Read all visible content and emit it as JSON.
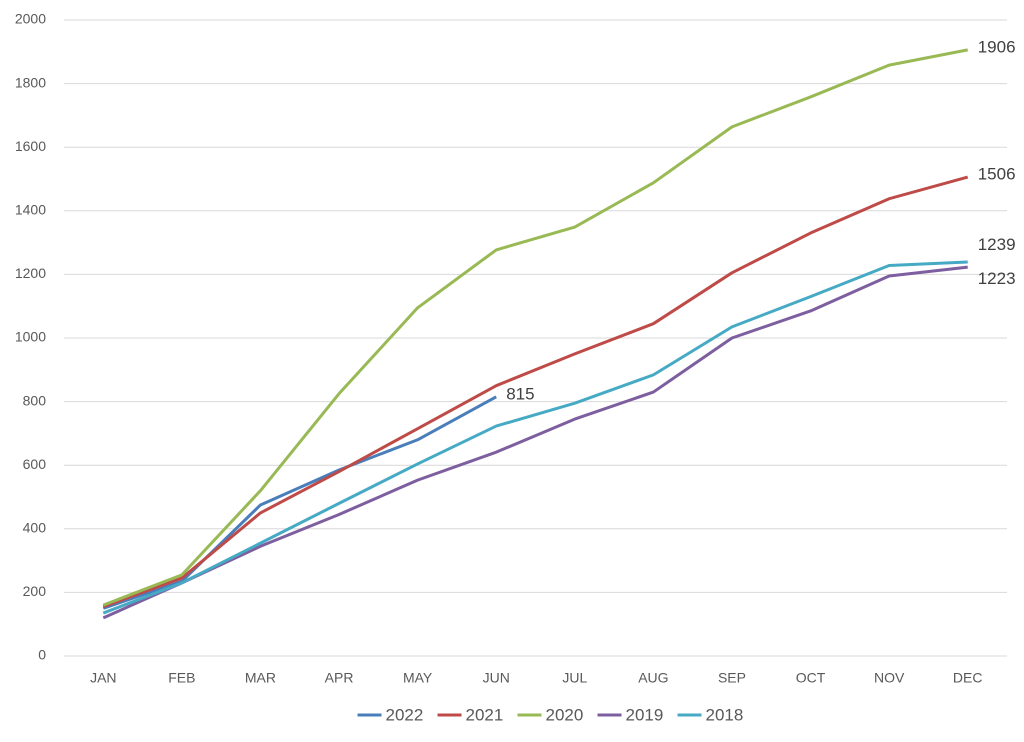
{
  "chart_data": {
    "type": "line",
    "categories": [
      "JAN",
      "FEB",
      "MAR",
      "APR",
      "MAY",
      "JUN",
      "JUL",
      "AUG",
      "SEP",
      "OCT",
      "NOV",
      "DEC"
    ],
    "series": [
      {
        "name": "2022",
        "color": "#4a7ebb",
        "values": [
          150,
          235,
          475,
          585,
          680,
          815,
          null,
          null,
          null,
          null,
          null,
          null
        ]
      },
      {
        "name": "2021",
        "color": "#be4b48",
        "values": [
          155,
          245,
          450,
          580,
          715,
          850,
          950,
          1045,
          1205,
          1330,
          1438,
          1506
        ]
      },
      {
        "name": "2020",
        "color": "#98b954",
        "values": [
          160,
          255,
          520,
          825,
          1095,
          1277,
          1349,
          1488,
          1664,
          1758,
          1858,
          1906
        ]
      },
      {
        "name": "2019",
        "color": "#7d5fa0",
        "values": [
          120,
          230,
          345,
          445,
          553,
          641,
          745,
          830,
          1000,
          1085,
          1195,
          1223
        ]
      },
      {
        "name": "2018",
        "color": "#46aac5",
        "values": [
          135,
          230,
          355,
          480,
          604,
          723,
          795,
          884,
          1035,
          1130,
          1228,
          1239
        ]
      }
    ],
    "ylim": [
      0,
      2000
    ],
    "yticks": [
      0,
      200,
      400,
      600,
      800,
      1000,
      1200,
      1400,
      1600,
      1800,
      2000
    ],
    "grid": true,
    "legend": "bottom",
    "label_last": true
  }
}
